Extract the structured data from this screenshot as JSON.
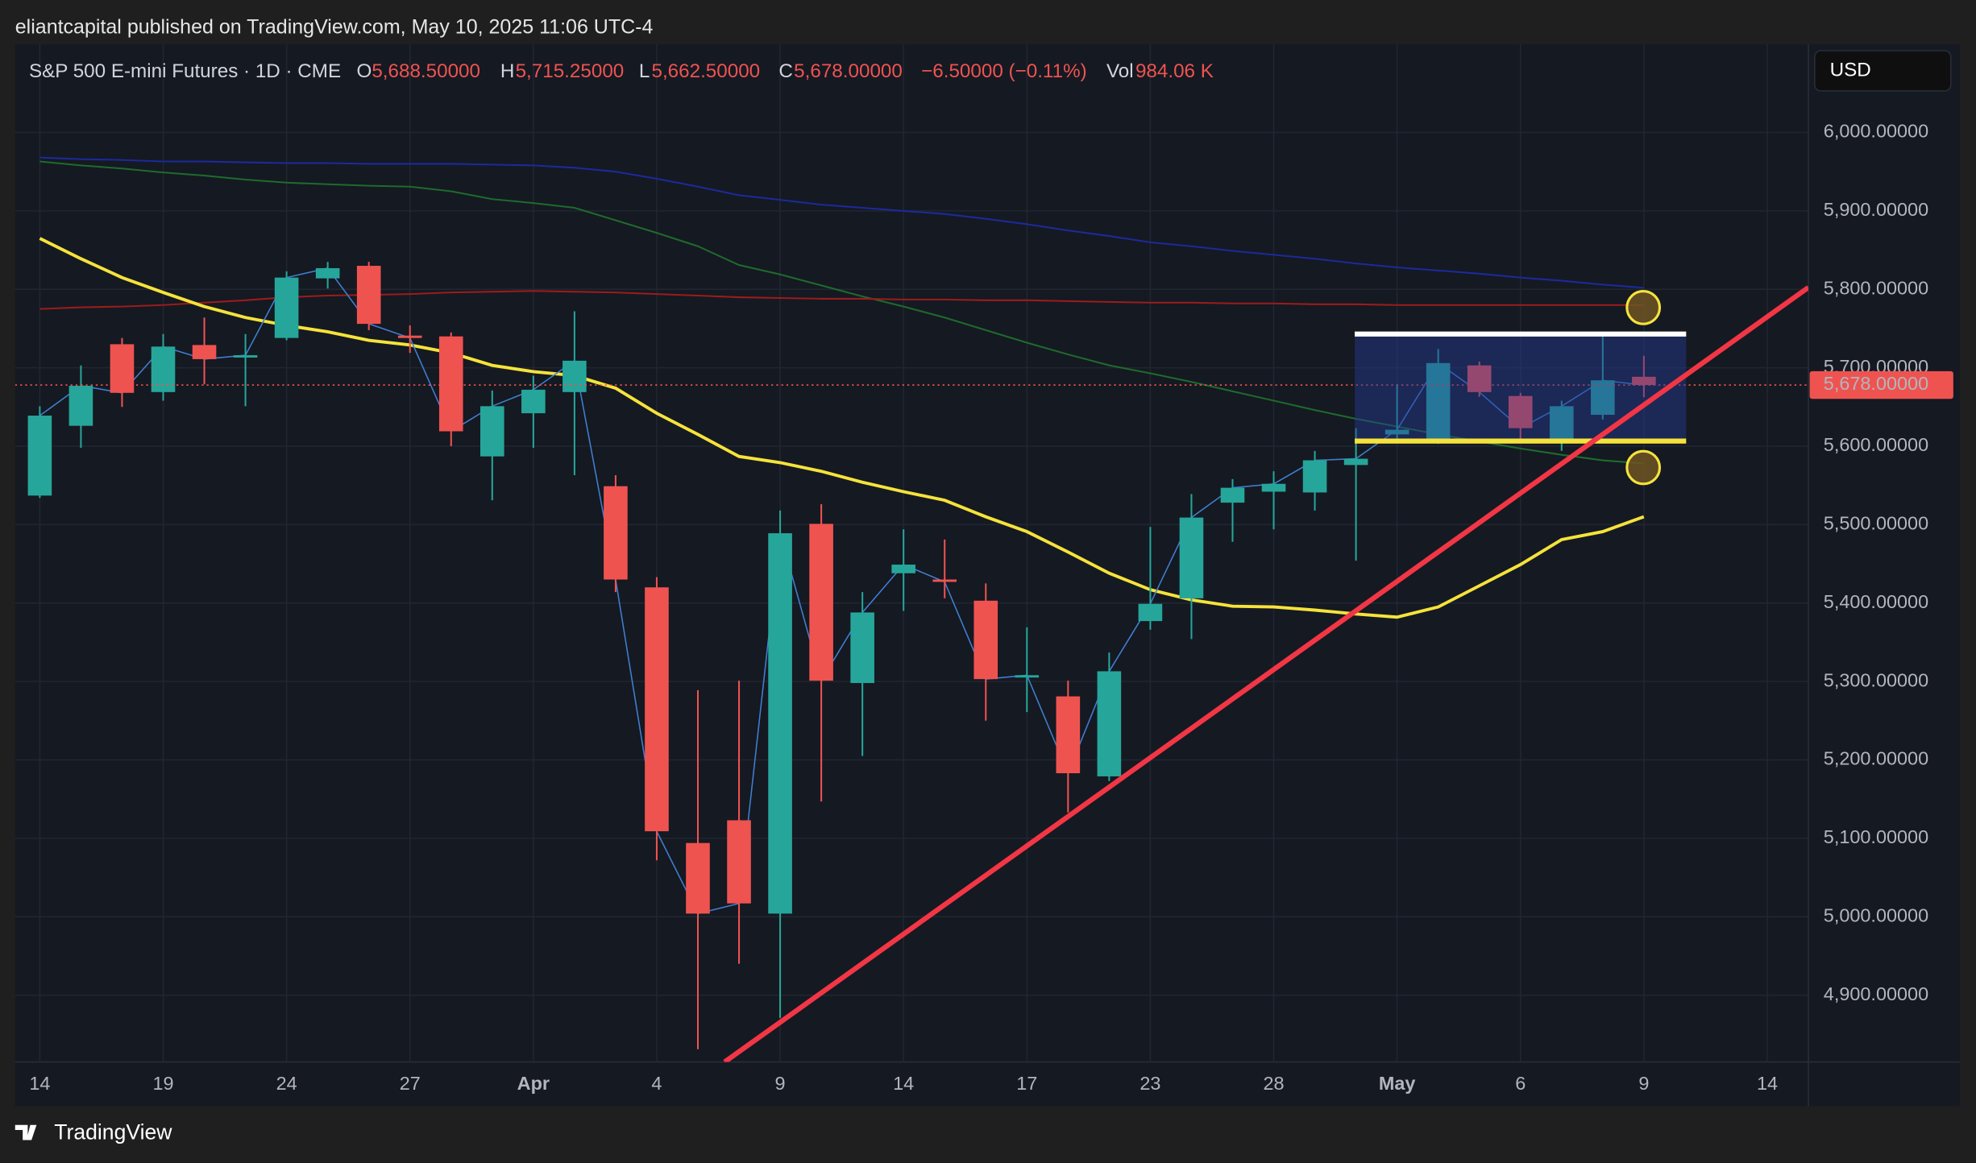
{
  "byline": "eliantcapital published on TradingView.com, May 10, 2025 11:06 UTC-4",
  "currency": "USD",
  "brand": "TradingView",
  "chart_data": {
    "type": "candlestick",
    "title": "S&P 500 E-mini Futures · 1D · CME",
    "ohlc_legend": [
      {
        "key": "O",
        "text": "5,688.50000"
      },
      {
        "key": "H",
        "text": "5,715.25000"
      },
      {
        "key": "L",
        "text": "5,662.50000"
      },
      {
        "key": "C",
        "text": "5,678.00000"
      }
    ],
    "change_text": "−6.50000 (−0.11%)",
    "volume_key": "Vol",
    "volume_text": "984.06 K",
    "categories": [
      "14",
      null,
      null,
      "19",
      null,
      null,
      "24",
      null,
      null,
      "27",
      null,
      null,
      "Apr",
      null,
      null,
      "4",
      null,
      null,
      "9",
      null,
      null,
      "14",
      null,
      null,
      "17",
      null,
      null,
      "23",
      null,
      null,
      "28",
      null,
      null,
      "May",
      null,
      null,
      "6",
      null,
      null,
      "9",
      null,
      null,
      "14"
    ],
    "open": [
      5537,
      5626,
      5730,
      5669,
      5729,
      5713,
      5738,
      5814,
      5830,
      5741,
      5740,
      5587,
      5642,
      5669,
      5549,
      5420,
      5094,
      5123,
      5004,
      5501,
      5298,
      5438,
      5430,
      5403,
      5305,
      5281,
      5179,
      5377,
      5406,
      5528,
      5542,
      5541,
      5576,
      5615,
      5607,
      5703,
      5664,
      5606,
      5640,
      5688.5,
      null,
      null,
      null
    ],
    "high": [
      5651,
      5703,
      5738,
      5743,
      5764,
      5743,
      5823,
      5835,
      5835,
      5754,
      5745,
      5671,
      5690,
      5772,
      5563,
      5433,
      5289,
      5301,
      5518,
      5526,
      5414,
      5494,
      5481,
      5425,
      5369,
      5301,
      5337,
      5497,
      5539,
      5558,
      5568,
      5594,
      5623,
      5679,
      5724,
      5708,
      5668,
      5658,
      5740,
      5715.25,
      null,
      null,
      null
    ],
    "low": [
      5534,
      5598,
      5650,
      5658,
      5679,
      5651,
      5735,
      5801,
      5748,
      5719,
      5600,
      5531,
      5598,
      5563,
      5414,
      5072,
      4831,
      4940,
      4871,
      5147,
      5205,
      5390,
      5406,
      5250,
      5261,
      5133,
      5173,
      5366,
      5354,
      5478,
      5494,
      5518,
      5454,
      5607,
      5603,
      5663,
      5607,
      5594,
      5634,
      5662.5,
      null,
      null,
      null
    ],
    "close": [
      5639,
      5677,
      5668,
      5727,
      5711,
      5716,
      5815,
      5827,
      5756,
      5738,
      5619,
      5651,
      5672,
      5709,
      5430,
      5109,
      5004,
      5017,
      5489,
      5301,
      5388,
      5449,
      5427,
      5303,
      5308,
      5183,
      5313,
      5399,
      5509,
      5547,
      5552,
      5582,
      5584,
      5621,
      5706,
      5669,
      5623,
      5651,
      5684,
      5678,
      null,
      null,
      null
    ],
    "up_color": "#26a69a",
    "down_color": "#ef5350",
    "close_line_color": "#3f7fd0",
    "series": [
      {
        "color": "#1c2a9c",
        "values": [
          5968,
          5966,
          5965,
          5963,
          5963,
          5962,
          5961,
          5961,
          5960,
          5960,
          5960,
          5959,
          5958,
          5955,
          5950,
          5941,
          5931,
          5920,
          5914,
          5908,
          5904,
          5900,
          5896,
          5890,
          5883,
          5875,
          5868,
          5860,
          5855,
          5849,
          5844,
          5839,
          5833,
          5828,
          5824,
          5820,
          5815,
          5811,
          5806,
          5802,
          null,
          null,
          null
        ]
      },
      {
        "color": "#1e6b2c",
        "values": [
          5963,
          5958,
          5954,
          5949,
          5945,
          5940,
          5936,
          5934,
          5932,
          5931,
          5925,
          5915,
          5910,
          5904,
          5888,
          5872,
          5855,
          5831,
          5819,
          5805,
          5791,
          5778,
          5764,
          5748,
          5732,
          5717,
          5703,
          5693,
          5682,
          5670,
          5658,
          5646,
          5635,
          5625,
          5615,
          5606,
          5597,
          5589,
          5582,
          5578,
          null,
          null,
          null
        ]
      },
      {
        "color": "#9b1c1c",
        "values": [
          5775,
          5777,
          5778,
          5780,
          5783,
          5786,
          5790,
          5792,
          5793,
          5794,
          5796,
          5797,
          5798,
          5797,
          5796,
          5794,
          5792,
          5790,
          5789,
          5788,
          5788,
          5787,
          5787,
          5786,
          5786,
          5785,
          5784,
          5783,
          5783,
          5782,
          5782,
          5781,
          5781,
          5780,
          5780,
          5780,
          5780,
          5780,
          5780,
          5780,
          null,
          null,
          null
        ]
      },
      {
        "color": "#f5e33b",
        "values": [
          5865,
          5839,
          5815,
          5796,
          5778,
          5764,
          5754,
          5746,
          5735,
          5729,
          5719,
          5703,
          5695,
          5690,
          5674,
          5642,
          5615,
          5587,
          5579,
          5568,
          5554,
          5542,
          5531,
          5510,
          5491,
          5465,
          5438,
          5417,
          5404,
          5396,
          5395,
          5391,
          5386,
          5382,
          5395,
          5422,
          5449,
          5481,
          5491,
          5510,
          null,
          null,
          null
        ]
      }
    ],
    "last_price": {
      "value": 5678,
      "label": "5,678.00000"
    },
    "xlim": [
      -0.6,
      43
    ],
    "ylim": [
      4814.8,
      6112.4
    ],
    "yticks": [
      {
        "value": 4900,
        "label": "4,900.00000"
      },
      {
        "value": 5000,
        "label": "5,000.00000"
      },
      {
        "value": 5100,
        "label": "5,100.00000"
      },
      {
        "value": 5200,
        "label": "5,200.00000"
      },
      {
        "value": 5300,
        "label": "5,300.00000"
      },
      {
        "value": 5400,
        "label": "5,400.00000"
      },
      {
        "value": 5500,
        "label": "5,500.00000"
      },
      {
        "value": 5600,
        "label": "5,600.00000"
      },
      {
        "value": 5700,
        "label": "5,700.00000"
      },
      {
        "value": 5800,
        "label": "5,800.00000"
      },
      {
        "value": 5900,
        "label": "5,900.00000"
      },
      {
        "value": 6000,
        "label": "6,000.00000"
      }
    ],
    "grid": true
  }
}
